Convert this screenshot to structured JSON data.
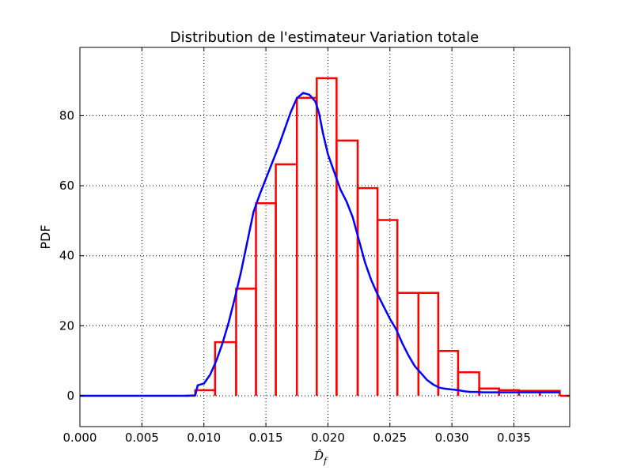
{
  "chart_data": {
    "type": "histogram",
    "title": "Distribution de l'estimateur Variation totale",
    "xlabel": "D̂_f",
    "xlabel_main": "D̂",
    "xlabel_sub": "f",
    "ylabel": "PDF",
    "xlim": [
      0.0,
      0.0395
    ],
    "ylim": [
      -8.8,
      99.5
    ],
    "xticks": [
      0.0,
      0.005,
      0.01,
      0.015,
      0.02,
      0.025,
      0.03,
      0.035
    ],
    "xtick_labels": [
      "0.000",
      "0.005",
      "0.010",
      "0.015",
      "0.020",
      "0.025",
      "0.030",
      "0.035"
    ],
    "yticks": [
      0,
      20,
      40,
      60,
      80
    ],
    "ytick_labels": [
      "0",
      "20",
      "40",
      "60",
      "80"
    ],
    "grid": true,
    "colors": {
      "histogram": "#ff0000",
      "kde": "#0000ff",
      "grid": "#000000"
    },
    "histogram": {
      "bin_edges": [
        0.0085,
        0.0093,
        0.0109,
        0.0126,
        0.0142,
        0.0158,
        0.0175,
        0.0191,
        0.0207,
        0.0224,
        0.024,
        0.0256,
        0.0273,
        0.0289,
        0.0305,
        0.0322,
        0.0338,
        0.0354,
        0.0371,
        0.0387,
        0.0395
      ],
      "values": [
        0.0,
        1.6,
        15.3,
        30.6,
        55.0,
        66.1,
        85.1,
        90.7,
        72.9,
        59.3,
        50.2,
        29.4,
        29.4,
        12.8,
        6.7,
        2.1,
        1.6,
        1.4,
        1.4,
        0.0
      ]
    },
    "kde": {
      "x": [
        0.0,
        0.005,
        0.0085,
        0.0093,
        0.0095,
        0.01,
        0.0105,
        0.011,
        0.0115,
        0.012,
        0.0125,
        0.013,
        0.0135,
        0.014,
        0.0145,
        0.015,
        0.0155,
        0.016,
        0.0165,
        0.017,
        0.0175,
        0.018,
        0.0185,
        0.019,
        0.0193,
        0.0196,
        0.02,
        0.0205,
        0.021,
        0.0215,
        0.022,
        0.0225,
        0.023,
        0.0235,
        0.024,
        0.0245,
        0.025,
        0.0255,
        0.026,
        0.0265,
        0.027,
        0.0275,
        0.028,
        0.0285,
        0.029,
        0.0295,
        0.03,
        0.0305,
        0.031,
        0.0315,
        0.032,
        0.0325,
        0.033,
        0.0335,
        0.034,
        0.0345,
        0.035,
        0.0355,
        0.036,
        0.0365,
        0.037,
        0.0375,
        0.038,
        0.0387
      ],
      "y": [
        0.0,
        0.0,
        0.0,
        0.1,
        3.0,
        3.5,
        6.0,
        10.0,
        15.0,
        21.0,
        28.0,
        35.5,
        44.0,
        52.5,
        57.5,
        62.0,
        66.5,
        71.0,
        76.0,
        81.0,
        85.0,
        86.5,
        86.0,
        84.0,
        80.5,
        75.0,
        69.0,
        64.0,
        59.0,
        55.5,
        51.0,
        44.5,
        38.0,
        33.0,
        29.0,
        25.5,
        22.0,
        19.0,
        15.0,
        11.5,
        8.5,
        6.5,
        4.5,
        3.2,
        2.3,
        2.0,
        1.8,
        1.6,
        1.3,
        1.1,
        1.1,
        1.0,
        1.0,
        1.0,
        1.0,
        1.0,
        1.0,
        1.0,
        1.0,
        1.0,
        1.0,
        1.0,
        1.0,
        1.0
      ]
    }
  }
}
